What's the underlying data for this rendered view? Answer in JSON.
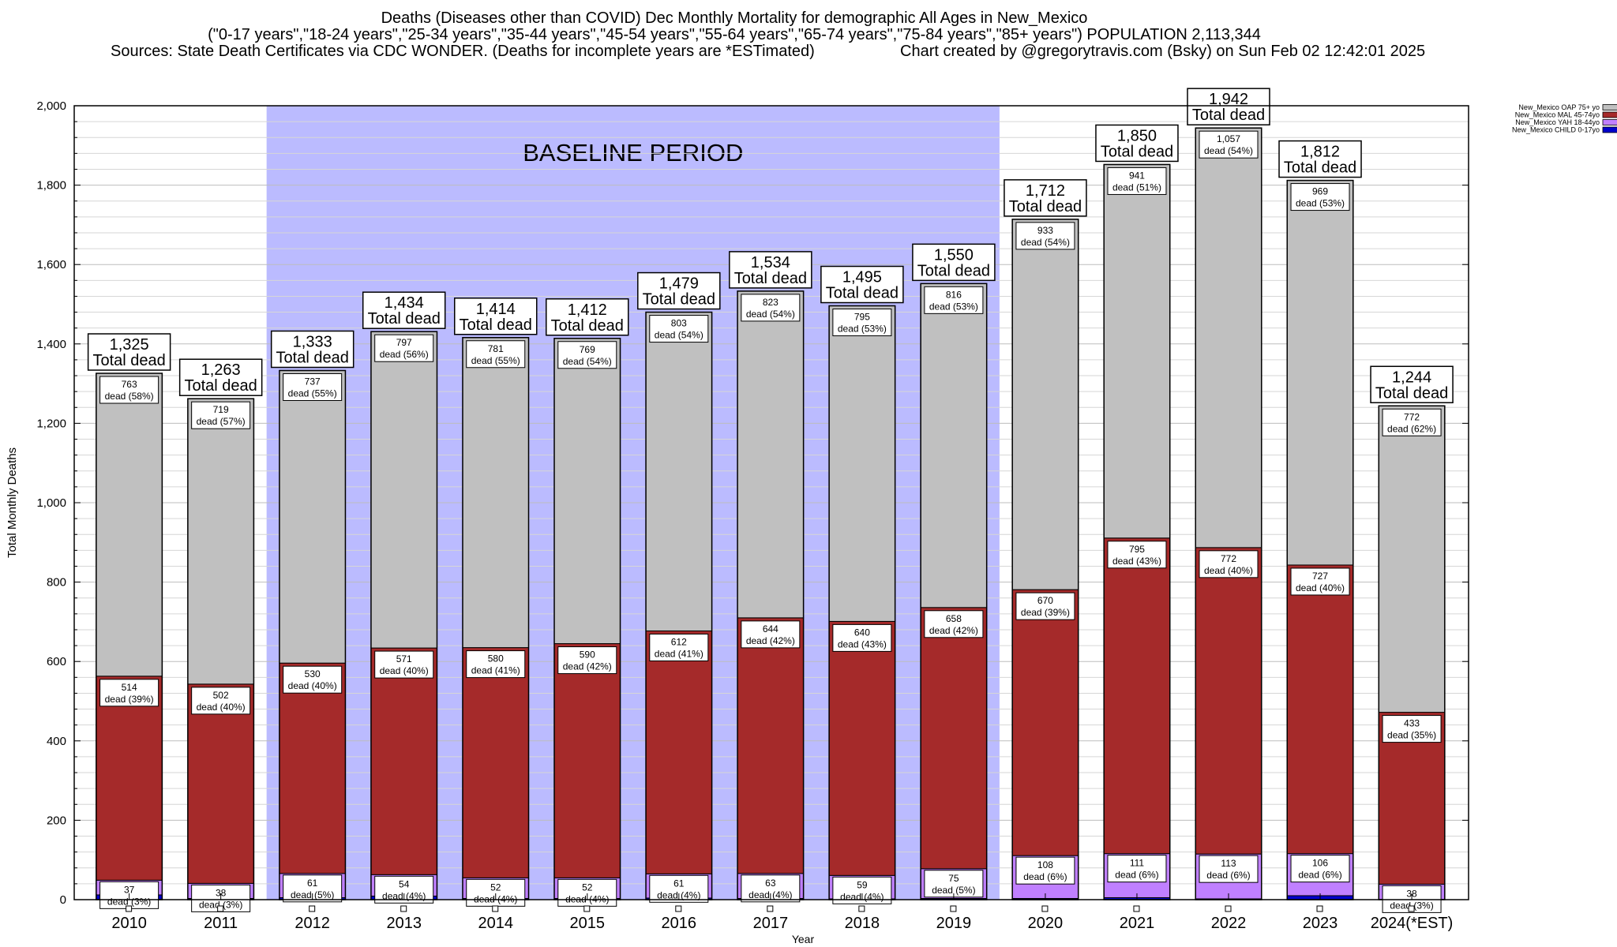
{
  "title": {
    "line1": "Deaths (Diseases other than COVID) Dec Monthly Mortality for demographic All Ages in New_Mexico",
    "line2": "(\"0-17 years\",\"18-24 years\",\"25-34 years\",\"35-44 years\",\"45-54 years\",\"55-64 years\",\"65-74 years\",\"75-84 years\",\"85+ years\") POPULATION 2,113,344",
    "line3a": "Sources: State Death Certificates via CDC WONDER. (Deaths for incomplete years are *ESTimated)",
    "line3b": "Chart created by @gregorytravis.com (Bsky) on Sun Feb 02 12:42:01 2025"
  },
  "chart_data": {
    "type": "bar",
    "stacked": true,
    "xlabel": "Year",
    "ylabel": "Total Monthly Deaths",
    "ylim": [
      0,
      2000
    ],
    "yticks": [
      "0",
      "200",
      "400",
      "600",
      "800",
      "1,000",
      "1,200",
      "1,400",
      "1,600",
      "1,800",
      "2,000"
    ],
    "categories": [
      "2010",
      "2011",
      "2012",
      "2013",
      "2014",
      "2015",
      "2016",
      "2017",
      "2018",
      "2019",
      "2020",
      "2021",
      "2022",
      "2023",
      "2024(*EST)"
    ],
    "baseline_label": "BASELINE PERIOD",
    "baseline_range": [
      "2012",
      "2019"
    ],
    "total_suffix": "Total dead",
    "totals": [
      "1,325",
      "1,263",
      "1,333",
      "1,434",
      "1,414",
      "1,412",
      "1,479",
      "1,534",
      "1,495",
      "1,550",
      "1,712",
      "1,850",
      "1,942",
      "1,812",
      "1,244"
    ],
    "series": [
      {
        "name": "New_Mexico CHILD 0-17yo",
        "color": "#0000cc",
        "values": [
          12,
          3,
          5,
          9,
          3,
          3,
          4,
          3,
          2,
          3,
          3,
          5,
          2,
          10,
          1
        ]
      },
      {
        "name": "New_Mexico YAH 18-44yo",
        "color": "#c080ff",
        "values": [
          37,
          38,
          61,
          54,
          52,
          52,
          61,
          63,
          59,
          75,
          108,
          111,
          113,
          106,
          38
        ],
        "labels": [
          "37\ndead (3%)",
          "38\ndead (3%)",
          "61\ndead (5%)",
          "54\ndead (4%)",
          "52\ndead (4%)",
          "52\ndead (4%)",
          "61\ndead (4%)",
          "63\ndead (4%)",
          "59\ndead (4%)",
          "75\ndead (5%)",
          "108\ndead (6%)",
          "111\ndead (6%)",
          "113\ndead (6%)",
          "106\ndead (6%)",
          "38\ndead (3%)"
        ]
      },
      {
        "name": "New_Mexico MAL 45-74yo",
        "color": "#a52a2a",
        "values": [
          514,
          502,
          530,
          571,
          580,
          590,
          612,
          644,
          640,
          658,
          670,
          795,
          772,
          727,
          433
        ],
        "labels": [
          "514\ndead (39%)",
          "502\ndead (40%)",
          "530\ndead (40%)",
          "571\ndead (40%)",
          "580\ndead (41%)",
          "590\ndead (42%)",
          "612\ndead (41%)",
          "644\ndead (42%)",
          "640\ndead (43%)",
          "658\ndead (42%)",
          "670\ndead (39%)",
          "795\ndead (43%)",
          "772\ndead (40%)",
          "727\ndead (40%)",
          "433\ndead (35%)"
        ]
      },
      {
        "name": "New_Mexico OAP 75+ yo",
        "color": "#c0c0c0",
        "values": [
          763,
          719,
          737,
          797,
          781,
          769,
          803,
          823,
          795,
          816,
          933,
          941,
          1057,
          969,
          772
        ],
        "labels": [
          "763\ndead (58%)",
          "719\ndead (57%)",
          "737\ndead (55%)",
          "797\ndead (56%)",
          "781\ndead (55%)",
          "769\ndead (54%)",
          "803\ndead (54%)",
          "823\ndead (54%)",
          "795\ndead (53%)",
          "816\ndead (53%)",
          "933\ndead (54%)",
          "941\ndead (51%)",
          "1,057\ndead (54%)",
          "969\ndead (53%)",
          "772\ndead (62%)"
        ]
      }
    ],
    "legend_order": [
      "New_Mexico OAP 75+ yo",
      "New_Mexico MAL 45-74yo",
      "New_Mexico YAH 18-44yo",
      "New_Mexico CHILD 0-17yo"
    ],
    "legend_position": "top-right",
    "grid": true
  }
}
